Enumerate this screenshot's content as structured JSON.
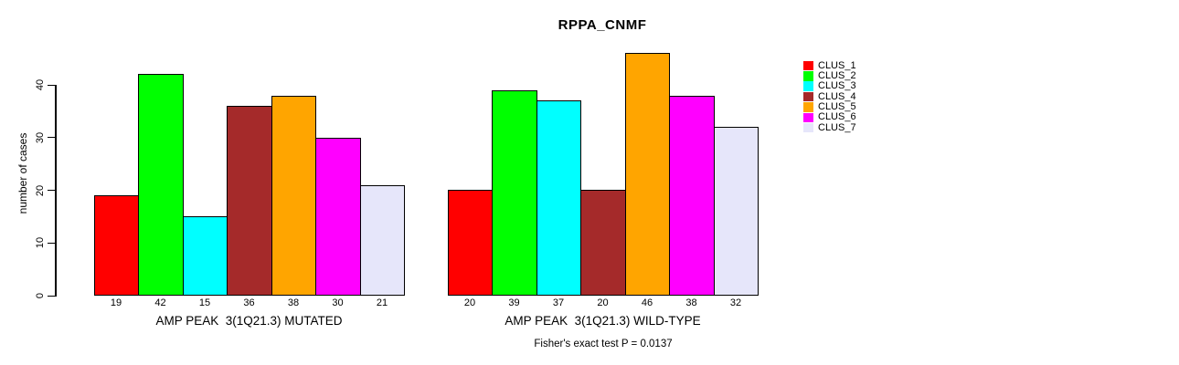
{
  "chart_data": {
    "type": "bar",
    "title": "RPPA_CNMF",
    "ylabel": "number of cases",
    "yticks": [
      0,
      10,
      20,
      30,
      40
    ],
    "ylim": [
      0,
      47
    ],
    "grid": false,
    "legend_position": "right",
    "categories": [
      "CLUS_1",
      "CLUS_2",
      "CLUS_3",
      "CLUS_4",
      "CLUS_5",
      "CLUS_6",
      "CLUS_7"
    ],
    "groups": [
      {
        "label": "AMP PEAK  3(1Q21.3) MUTATED",
        "values": [
          19,
          42,
          15,
          36,
          38,
          30,
          21
        ]
      },
      {
        "label": "AMP PEAK  3(1Q21.3) WILD-TYPE",
        "values": [
          20,
          39,
          37,
          20,
          46,
          38,
          32
        ]
      }
    ],
    "legend": [
      {
        "label": "CLUS_1",
        "color": "#FF0000"
      },
      {
        "label": "CLUS_2",
        "color": "#00FF00"
      },
      {
        "label": "CLUS_3",
        "color": "#00FFFF"
      },
      {
        "label": "CLUS_4",
        "color": "#A52A2A"
      },
      {
        "label": "CLUS_5",
        "color": "#FFA500"
      },
      {
        "label": "CLUS_6",
        "color": "#FF00FF"
      },
      {
        "label": "CLUS_7",
        "color": "#E6E6FA"
      }
    ],
    "footer": "Fisher's exact test P = 0.0137"
  }
}
